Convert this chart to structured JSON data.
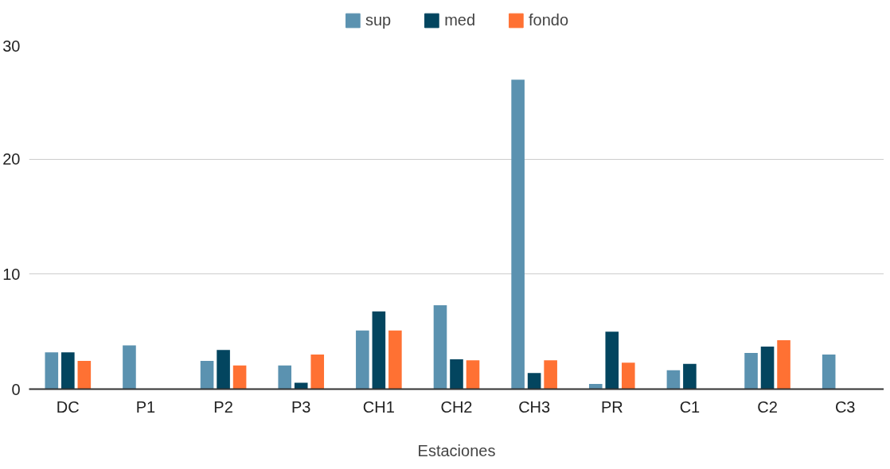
{
  "chart_data": {
    "type": "bar",
    "xlabel": "Estaciones",
    "categories": [
      "DC",
      "P1",
      "P2",
      "P3",
      "CH1",
      "CH2",
      "CH3",
      "PR",
      "C1",
      "C2",
      "C3"
    ],
    "series": [
      {
        "name": "sup",
        "color": "#5b92b0",
        "values": [
          3.2,
          3.8,
          2.45,
          2.05,
          5.1,
          7.3,
          26.9,
          0.45,
          1.65,
          3.15,
          3.0
        ]
      },
      {
        "name": "med",
        "color": "#03455f",
        "values": [
          3.2,
          null,
          3.4,
          0.55,
          6.75,
          2.6,
          1.4,
          5.0,
          2.2,
          3.7,
          null
        ]
      },
      {
        "name": "fondo",
        "color": "#ff7133",
        "values": [
          2.45,
          null,
          2.05,
          3.0,
          5.1,
          2.5,
          2.5,
          2.3,
          null,
          4.25,
          null
        ]
      }
    ],
    "ylim": [
      0,
      30
    ],
    "yticks": [
      0,
      10,
      20,
      30
    ],
    "grid": "y",
    "legend": "top"
  }
}
